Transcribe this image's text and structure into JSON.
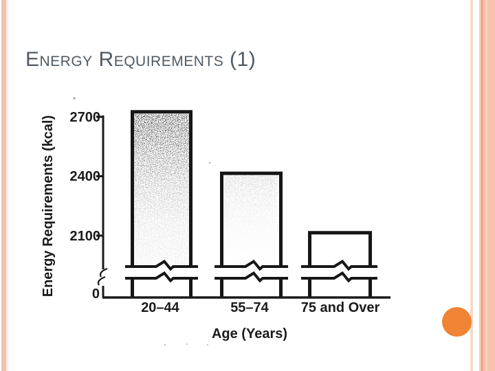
{
  "slide": {
    "title": "Energy Requirements (1)",
    "title_color": "#4e5a64",
    "theme_colors": {
      "left_stripe": "#f5c1ab",
      "right_stripes": [
        "#f8d8ca",
        "#f6c9b6",
        "#e99c71",
        "#f5bfa6",
        "#f9d2c2",
        "#f6c3ae"
      ],
      "accent_circle": "#ef8434",
      "ink": "#1a1a1a"
    }
  },
  "chart_data": {
    "type": "bar",
    "title": "",
    "categories": [
      "20–44",
      "55–74",
      "75 and Over"
    ],
    "values": [
      2725,
      2415,
      2115
    ],
    "xlabel": "Age (Years)",
    "ylabel": "Energy Requirements (kcal)",
    "yticks": [
      0,
      2100,
      2400,
      2700
    ],
    "ytick_labels": [
      "0",
      "2100",
      "2400",
      "2700"
    ],
    "ylim": [
      0,
      2760
    ],
    "axis_break": true,
    "break_between": [
      0,
      2050
    ],
    "grid": false,
    "legend": false,
    "style": "scanned black-and-white figure, thick bar outlines, stipple shading in first bars, break marks across each bar near baseline"
  }
}
